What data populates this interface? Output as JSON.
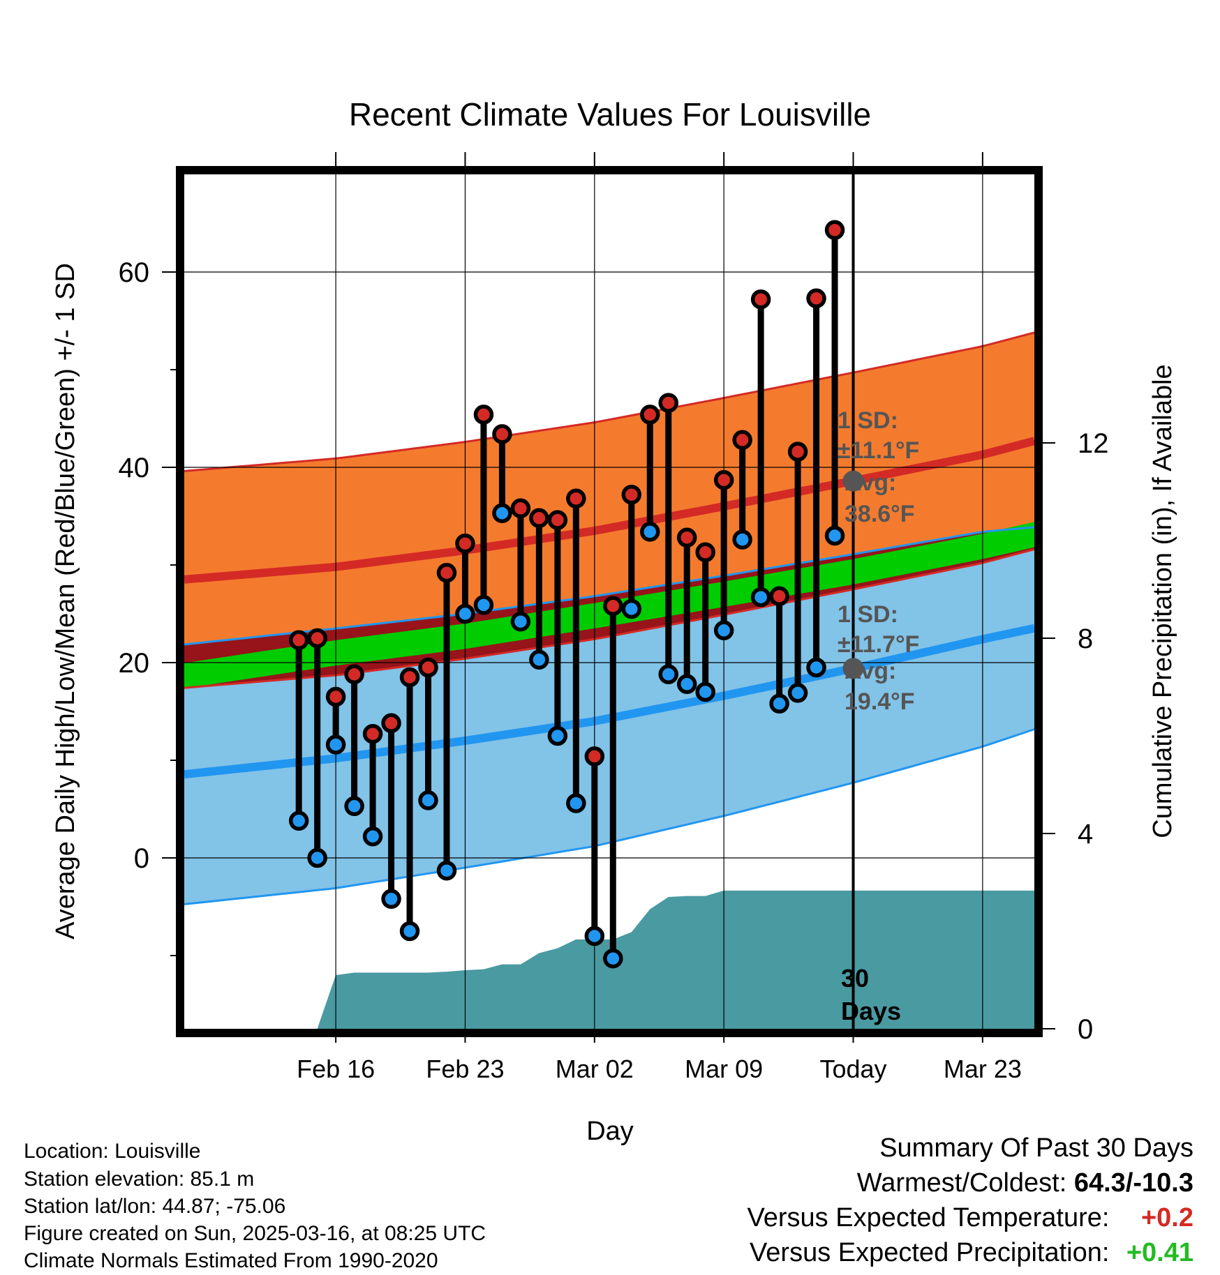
{
  "title": "Recent Climate Values For Louisville",
  "xlabel": "Day",
  "ylabel_left": "Average Daily High/Low/Mean (Red/Blue/Green) +/- 1 SD",
  "ylabel_right": "Cumulative Precipitation (in), If Available",
  "today_label": "Today",
  "days_label_line1": "30",
  "days_label_line2": "Days",
  "high_annotation": {
    "sd_label": "1 SD:",
    "sd_value": "±11.1°F",
    "avg_label": "Avg:",
    "avg_value": "38.6°F"
  },
  "low_annotation": {
    "sd_label": "1 SD:",
    "sd_value": "±11.7°F",
    "avg_label": "Avg:",
    "avg_value": "19.4°F"
  },
  "colors": {
    "high_band": "#f47b2e",
    "high_line": "#d42a25",
    "low_band": "#82c3e8",
    "low_line": "#2196f0",
    "mean_band": "#00cc00",
    "overlap": "#96141a",
    "precip": "#4a9aa2",
    "high_dot": "#d42a25",
    "low_dot": "#2196f0",
    "annotation": "#555555",
    "anomaly_temp": "#d42a25",
    "anomaly_precip": "#22bb22"
  },
  "chart_data": {
    "type": "line",
    "x_range_days": [
      -36.2,
      9.8
    ],
    "x_ticks": [
      {
        "day": -28,
        "label": "Feb 16"
      },
      {
        "day": -21,
        "label": "Feb 23"
      },
      {
        "day": -14,
        "label": "Mar 02"
      },
      {
        "day": -7,
        "label": "Mar 09"
      },
      {
        "day": 0,
        "label": "Today"
      },
      {
        "day": 7,
        "label": "Mar 23"
      }
    ],
    "y_left": {
      "range": [
        -17.5,
        70
      ],
      "ticks": [
        0,
        20,
        40,
        60
      ],
      "minor_ticks": [
        -10,
        10,
        30,
        50
      ]
    },
    "y_right": {
      "range": [
        0,
        17.5
      ],
      "ticks": [
        0,
        4,
        8,
        12
      ]
    },
    "normals": {
      "days": [
        -35,
        -28,
        -21,
        -14,
        -7,
        0,
        7,
        10
      ],
      "high_mean": [
        28.7,
        29.8,
        31.5,
        33.5,
        36.0,
        38.6,
        41.3,
        42.8
      ],
      "high_sd": [
        11.1,
        11.1,
        11.1,
        11.1,
        11.1,
        11.1,
        11.1,
        11.1
      ],
      "low_mean": [
        8.8,
        10.2,
        12.0,
        14.0,
        16.6,
        19.4,
        22.4,
        23.6
      ],
      "low_sd": [
        13.3,
        13.3,
        13.0,
        12.8,
        12.3,
        11.7,
        11.0,
        10.3
      ],
      "mean_mean": [
        19.0,
        21.0,
        22.7,
        24.8,
        27.0,
        29.3,
        31.9,
        33.2
      ]
    },
    "observations": {
      "days": [
        -30,
        -29,
        -28,
        -27,
        -26,
        -25,
        -24,
        -23,
        -22,
        -21,
        -20,
        -19,
        -18,
        -17,
        -16,
        -15,
        -14,
        -13,
        -12,
        -11,
        -10,
        -9,
        -8,
        -7,
        -6,
        -5,
        -4,
        -3,
        -2,
        -1
      ],
      "highs": [
        22.3,
        22.5,
        16.5,
        18.8,
        12.7,
        13.8,
        18.5,
        19.5,
        29.2,
        32.2,
        45.4,
        43.4,
        35.8,
        34.8,
        34.6,
        36.8,
        10.4,
        25.8,
        37.2,
        45.4,
        46.6,
        32.8,
        31.3,
        38.7,
        42.8,
        57.2,
        26.8,
        41.6,
        57.3,
        64.3
      ],
      "lows": [
        3.8,
        0.0,
        11.6,
        5.3,
        2.2,
        -4.2,
        -7.5,
        5.9,
        -1.3,
        25.0,
        25.9,
        35.3,
        24.2,
        20.3,
        12.5,
        5.6,
        -8.0,
        -10.3,
        25.5,
        33.4,
        18.8,
        17.8,
        17.0,
        23.3,
        32.6,
        26.7,
        15.8,
        16.9,
        19.5,
        33.0
      ]
    },
    "precipitation": {
      "days": [
        -30,
        -29,
        -28,
        -27,
        -26,
        -25,
        -24,
        -23,
        -22,
        -21,
        -20,
        -19,
        -18,
        -17,
        -16,
        -15,
        -14,
        -13,
        -12,
        -11,
        -10,
        -9,
        -8,
        -7,
        -6,
        -5,
        -4,
        -3,
        -2,
        -1,
        0,
        9.8
      ],
      "cumulative_in": [
        0.0,
        0.0,
        1.1,
        1.15,
        1.15,
        1.15,
        1.15,
        1.15,
        1.17,
        1.2,
        1.22,
        1.32,
        1.32,
        1.55,
        1.65,
        1.83,
        1.83,
        1.83,
        1.98,
        2.45,
        2.7,
        2.72,
        2.72,
        2.83,
        2.83,
        2.83,
        2.83,
        2.83,
        2.83,
        2.83,
        2.83,
        2.83
      ]
    }
  },
  "footer": {
    "location": "Location: Louisville",
    "elevation": "Station elevation: 85.1 m",
    "latlon": "Station lat/lon: 44.87; -75.06",
    "created": "Figure created on Sun, 2025-03-16, at 08:25 UTC",
    "normals": "Climate Normals Estimated From 1990-2020"
  },
  "summary": {
    "heading": "Summary Of Past 30 Days",
    "warmest_label": "Warmest/Coldest:",
    "warmest_value": "64.3/-10.3",
    "temp_label": "Versus Expected Temperature:",
    "temp_value": "+0.2",
    "precip_label": "Versus Expected Precipitation:",
    "precip_value": "+0.41"
  }
}
